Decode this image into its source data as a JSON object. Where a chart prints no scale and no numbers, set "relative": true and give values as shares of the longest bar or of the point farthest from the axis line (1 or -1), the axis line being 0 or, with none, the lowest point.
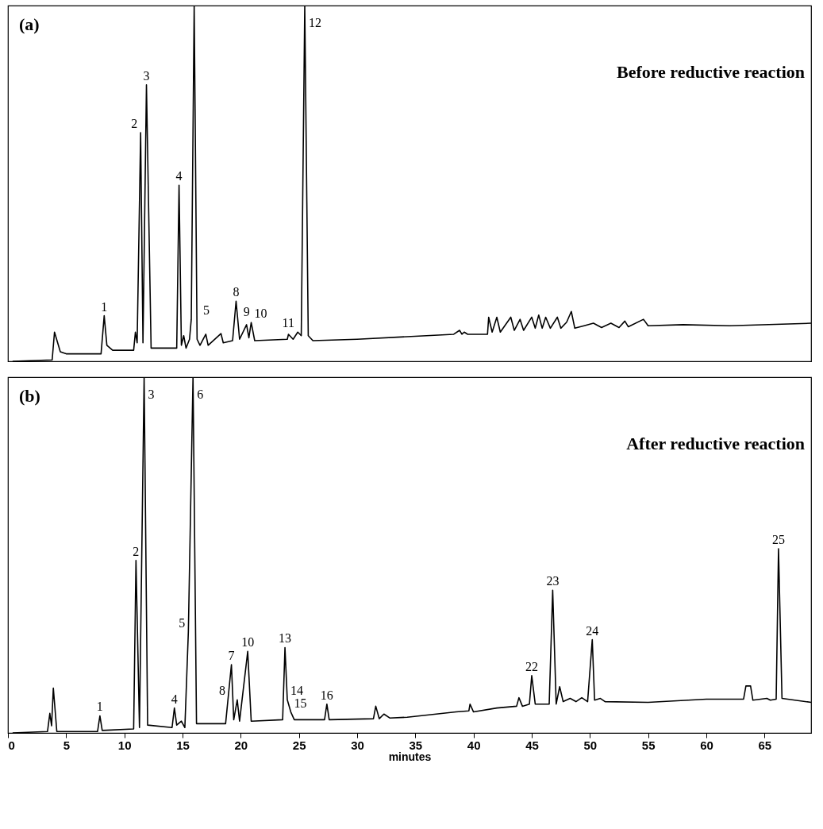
{
  "chart_data": [
    {
      "type": "line",
      "title": "(a)",
      "subtitle": "Before reductive reaction",
      "relative": true,
      "color": "#000000",
      "xlim": [
        0,
        69
      ],
      "xticks": [
        0,
        5,
        10,
        15,
        20,
        25,
        30,
        35,
        40,
        45,
        50,
        55,
        60,
        65
      ],
      "tick_labels": false,
      "x": [
        0.4,
        3.8,
        4.0,
        4.5,
        5.0,
        8.0,
        8.27,
        8.5,
        9.0,
        10.8,
        10.95,
        11.1,
        11.4,
        11.6,
        11.9,
        12.3,
        14.5,
        14.7,
        14.9,
        15.1,
        15.3,
        15.6,
        15.75,
        16.0,
        16.25,
        16.5,
        17.0,
        17.2,
        18.3,
        18.5,
        19.3,
        19.6,
        19.9,
        20.5,
        20.7,
        20.9,
        21.2,
        24.0,
        24.1,
        24.5,
        24.9,
        25.2,
        25.5,
        25.8,
        26.2,
        30,
        38.3,
        38.8,
        39.0,
        39.2,
        39.5,
        41.2,
        41.3,
        41.6,
        42.0,
        42.3,
        43.2,
        43.5,
        44.0,
        44.3,
        45.0,
        45.3,
        45.6,
        45.9,
        46.2,
        46.6,
        47.2,
        47.5,
        48.0,
        48.4,
        48.7,
        49.5,
        50.3,
        51.0,
        51.8,
        52.5,
        53.0,
        53.3,
        54.6,
        55,
        58,
        62,
        69
      ],
      "values": [
        0,
        0.004,
        0.082,
        0.027,
        0.021,
        0.021,
        0.128,
        0.045,
        0.031,
        0.031,
        0.082,
        0.052,
        0.643,
        0.052,
        0.777,
        0.037,
        0.037,
        0.495,
        0.045,
        0.072,
        0.037,
        0.062,
        0.118,
        1,
        0.062,
        0.045,
        0.076,
        0.045,
        0.078,
        0.052,
        0.058,
        0.169,
        0.062,
        0.103,
        0.066,
        0.109,
        0.058,
        0.062,
        0.076,
        0.062,
        0.082,
        0.072,
        1,
        0.072,
        0.058,
        0.062,
        0.076,
        0.087,
        0.076,
        0.082,
        0.076,
        0.076,
        0.124,
        0.082,
        0.124,
        0.082,
        0.124,
        0.087,
        0.118,
        0.087,
        0.124,
        0.093,
        0.13,
        0.093,
        0.124,
        0.093,
        0.124,
        0.093,
        0.11,
        0.14,
        0.093,
        0.1,
        0.107,
        0.095,
        0.107,
        0.095,
        0.113,
        0.097,
        0.118,
        0.1,
        0.103,
        0.1,
        0.107
      ],
      "annotations": [
        {
          "text": "1",
          "x": 8.27,
          "y": 0.128
        },
        {
          "text": "2",
          "x": 11.4,
          "y": 0.643
        },
        {
          "text": "3",
          "x": 11.9,
          "y": 0.777
        },
        {
          "text": "4",
          "x": 14.7,
          "y": 0.495
        },
        {
          "text": "5",
          "x": 15.75,
          "y": 0.118
        },
        {
          "text": "8",
          "x": 19.6,
          "y": 0.169
        },
        {
          "text": "9",
          "x": 20.5,
          "y": 0.103
        },
        {
          "text": "10",
          "x": 20.9,
          "y": 0.109
        },
        {
          "text": "11",
          "x": 24.9,
          "y": 0.082
        },
        {
          "text": "12",
          "x": 25.5,
          "y": 1
        }
      ]
    },
    {
      "type": "line",
      "title": "(b)",
      "subtitle": "After reductive reaction",
      "relative": true,
      "color": "#000000",
      "xlabel": "minutes",
      "xlim": [
        0,
        69
      ],
      "xticks": [
        0,
        5,
        10,
        15,
        20,
        25,
        30,
        35,
        40,
        45,
        50,
        55,
        60,
        65
      ],
      "tick_labels": "x",
      "x": [
        0.4,
        3.4,
        3.6,
        3.75,
        3.9,
        4.2,
        7.7,
        7.9,
        8.1,
        10.8,
        11.0,
        11.3,
        11.7,
        12.0,
        14.1,
        14.3,
        14.5,
        14.9,
        15.2,
        15.5,
        15.9,
        16.2,
        18.7,
        19.2,
        19.4,
        19.7,
        19.9,
        20.6,
        20.9,
        23.6,
        23.8,
        24.0,
        24.3,
        24.6,
        27.2,
        27.4,
        27.6,
        31.4,
        31.6,
        31.9,
        32.3,
        32.8,
        34.3,
        38.5,
        39.6,
        39.7,
        40.0,
        42,
        43.7,
        43.9,
        44.2,
        44.8,
        45.0,
        45.3,
        46.5,
        46.8,
        47.1,
        47.4,
        47.7,
        48.3,
        48.8,
        49.3,
        49.8,
        50.2,
        50.4,
        50.9,
        51.3,
        55,
        60,
        63.2,
        63.4,
        63.8,
        64.0,
        65.2,
        65.5,
        66.0,
        66.2,
        66.5,
        69
      ],
      "values": [
        0,
        0.004,
        0.055,
        0.02,
        0.126,
        0.004,
        0.004,
        0.048,
        0.007,
        0.011,
        0.485,
        0.015,
        1,
        0.022,
        0.015,
        0.07,
        0.022,
        0.033,
        0.015,
        0.284,
        1,
        0.026,
        0.026,
        0.192,
        0.037,
        0.093,
        0.033,
        0.229,
        0.033,
        0.037,
        0.24,
        0.093,
        0.059,
        0.037,
        0.037,
        0.081,
        0.037,
        0.04,
        0.075,
        0.04,
        0.053,
        0.042,
        0.044,
        0.059,
        0.062,
        0.081,
        0.059,
        0.07,
        0.075,
        0.099,
        0.075,
        0.081,
        0.161,
        0.081,
        0.081,
        0.401,
        0.081,
        0.13,
        0.088,
        0.097,
        0.088,
        0.099,
        0.088,
        0.262,
        0.092,
        0.097,
        0.088,
        0.086,
        0.095,
        0.095,
        0.132,
        0.132,
        0.092,
        0.097,
        0.092,
        0.095,
        0.518,
        0.097,
        0.086
      ],
      "annotations": [
        {
          "text": "1",
          "x": 7.9,
          "y": 0.048
        },
        {
          "text": "2",
          "x": 11.0,
          "y": 0.485
        },
        {
          "text": "3",
          "x": 11.7,
          "y": 1
        },
        {
          "text": "4",
          "x": 14.3,
          "y": 0.07
        },
        {
          "text": "5",
          "x": 15.5,
          "y": 0.284
        },
        {
          "text": "6",
          "x": 15.9,
          "y": 1
        },
        {
          "text": "7",
          "x": 19.2,
          "y": 0.192
        },
        {
          "text": "8",
          "x": 19.7,
          "y": 0.093
        },
        {
          "text": "10",
          "x": 20.6,
          "y": 0.229
        },
        {
          "text": "13",
          "x": 23.8,
          "y": 0.24
        },
        {
          "text": "14",
          "x": 24.0,
          "y": 0.093
        },
        {
          "text": "15",
          "x": 24.3,
          "y": 0.059
        },
        {
          "text": "16",
          "x": 27.4,
          "y": 0.081
        },
        {
          "text": "22",
          "x": 45.0,
          "y": 0.161
        },
        {
          "text": "23",
          "x": 46.8,
          "y": 0.401
        },
        {
          "text": "24",
          "x": 50.2,
          "y": 0.262
        },
        {
          "text": "25",
          "x": 66.2,
          "y": 0.518
        }
      ]
    }
  ]
}
